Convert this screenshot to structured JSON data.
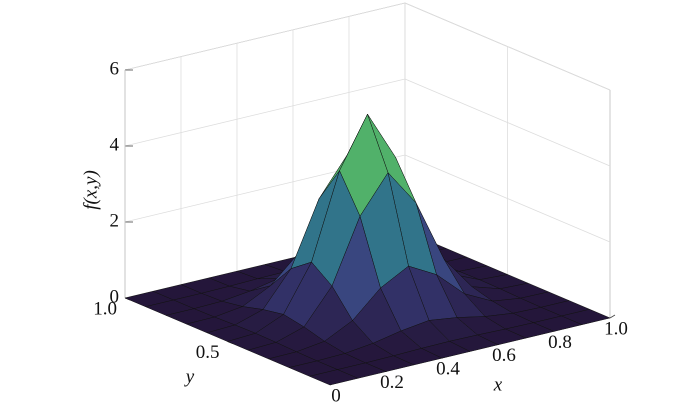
{
  "chart_data": {
    "type": "surface",
    "x_label": "x",
    "y_label": "y",
    "z_label": "f(x,y)",
    "x": [
      0,
      0.1,
      0.2,
      0.3,
      0.4,
      0.5,
      0.6,
      0.7,
      0.8,
      0.9,
      1
    ],
    "y": [
      0,
      0.1,
      0.2,
      0.3,
      0.4,
      0.5,
      0.6,
      0.7,
      0.8,
      0.9,
      1
    ],
    "z": [
      [
        0,
        0,
        0,
        0,
        0,
        0,
        0,
        0,
        0,
        0,
        0
      ],
      [
        0,
        0,
        0,
        0.01,
        0.03,
        0.04,
        0.03,
        0.01,
        0,
        0,
        0
      ],
      [
        0,
        0,
        0.02,
        0.11,
        0.26,
        0.36,
        0.26,
        0.11,
        0.02,
        0,
        0
      ],
      [
        0,
        0.01,
        0.11,
        0.48,
        1.16,
        1.56,
        1.16,
        0.48,
        0.11,
        0.01,
        0
      ],
      [
        0,
        0.03,
        0.26,
        1.16,
        2.82,
        3.79,
        2.82,
        1.16,
        0.26,
        0.03,
        0
      ],
      [
        0,
        0.04,
        0.36,
        1.56,
        3.79,
        5.1,
        3.79,
        1.56,
        0.36,
        0.04,
        0
      ],
      [
        0,
        0.03,
        0.26,
        1.16,
        2.82,
        3.79,
        2.82,
        1.16,
        0.26,
        0.03,
        0
      ],
      [
        0,
        0.01,
        0.11,
        0.48,
        1.16,
        1.56,
        1.16,
        0.48,
        0.11,
        0.01,
        0
      ],
      [
        0,
        0,
        0.02,
        0.11,
        0.26,
        0.36,
        0.26,
        0.11,
        0.02,
        0,
        0
      ],
      [
        0,
        0,
        0,
        0.01,
        0.03,
        0.04,
        0.03,
        0.01,
        0,
        0,
        0
      ],
      [
        0,
        0,
        0,
        0,
        0,
        0,
        0,
        0,
        0,
        0,
        0
      ]
    ],
    "xlim": [
      0,
      1
    ],
    "ylim": [
      0,
      1
    ],
    "zlim": [
      0,
      6
    ],
    "xticks": [
      0,
      0.2,
      0.4,
      0.6,
      0.8,
      {
        "value": 1,
        "label": "1.0"
      }
    ],
    "yticks": [
      0.5,
      {
        "value": 1,
        "label": "1.0"
      }
    ],
    "zticks": [
      0,
      2,
      4,
      6
    ],
    "grid": true,
    "colormap": [
      "#24163a",
      "#3a3f7e",
      "#2f7f8c",
      "#4bb06b",
      "#d9d64a"
    ]
  }
}
